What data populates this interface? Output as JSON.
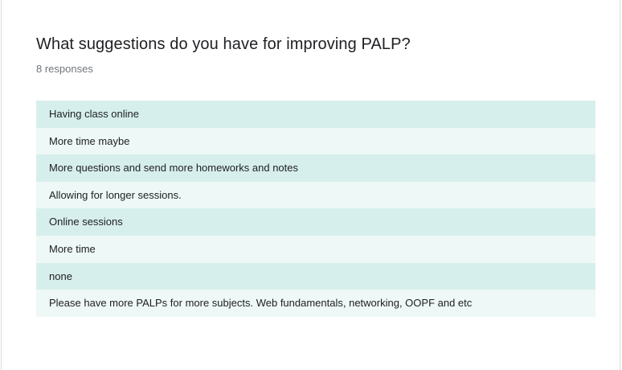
{
  "question": {
    "title": "What suggestions do you have for improving PALP?",
    "response_count": "8 responses"
  },
  "responses": [
    "Having class online",
    "More time maybe",
    "More questions and send more homeworks and notes",
    "Allowing for longer sessions.",
    "Online sessions",
    "More time",
    "none",
    "Please have more PALPs for more subjects. Web fundamentals, networking, OOPF and etc"
  ],
  "colors": {
    "row_odd": "#d7efec",
    "row_even": "#eef8f6",
    "title_text": "#202124",
    "count_text": "#70757a"
  }
}
